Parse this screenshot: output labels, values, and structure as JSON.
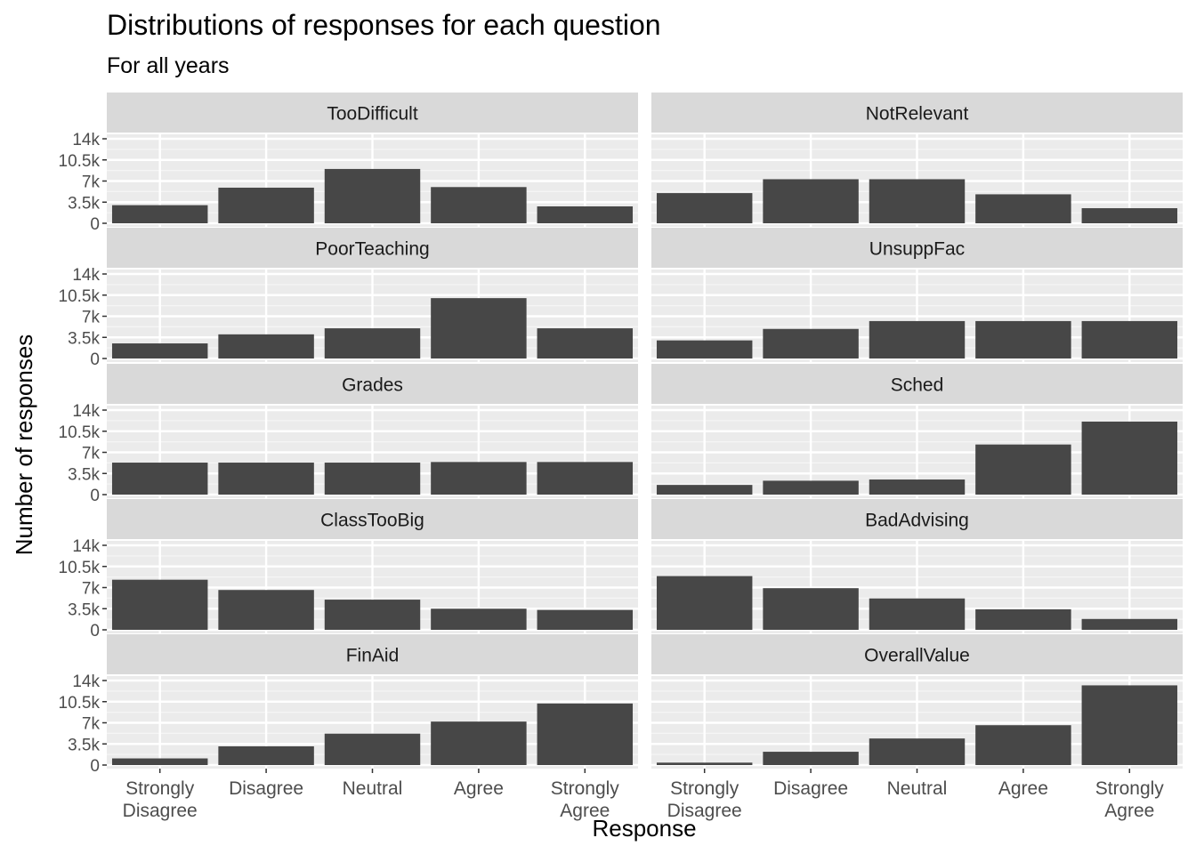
{
  "chart_data": {
    "type": "bar",
    "title": "Distributions of responses for each question",
    "subtitle": "For all years",
    "xlabel": "Response",
    "ylabel": "Number of responses",
    "categories": [
      "Strongly Disagree",
      "Disagree",
      "Neutral",
      "Agree",
      "Strongly Agree"
    ],
    "category_lines": [
      [
        "Strongly",
        "Disagree"
      ],
      [
        "Disagree"
      ],
      [
        "Neutral"
      ],
      [
        "Agree"
      ],
      [
        "Strongly",
        "Agree"
      ]
    ],
    "ylim": [
      0,
      14000
    ],
    "yticks": [
      0,
      3500,
      7000,
      10500,
      14000
    ],
    "ytick_labels": [
      "0",
      "3.5k",
      "7k",
      "10.5k",
      "14k"
    ],
    "grid": true,
    "legend": "none",
    "panels": [
      {
        "name": "TooDifficult",
        "values": [
          3000,
          5900,
          9000,
          6000,
          2800
        ]
      },
      {
        "name": "NotRelevant",
        "values": [
          5000,
          7300,
          7300,
          4800,
          2500
        ]
      },
      {
        "name": "PoorTeaching",
        "values": [
          2500,
          4000,
          5000,
          10000,
          5000
        ]
      },
      {
        "name": "UnsuppFac",
        "values": [
          3000,
          4900,
          6200,
          6200,
          6200
        ]
      },
      {
        "name": "Grades",
        "values": [
          5300,
          5300,
          5300,
          5400,
          5400
        ]
      },
      {
        "name": "Sched",
        "values": [
          1600,
          2300,
          2500,
          8300,
          12100
        ]
      },
      {
        "name": "ClassTooBig",
        "values": [
          8300,
          6600,
          5000,
          3500,
          3300
        ]
      },
      {
        "name": "BadAdvising",
        "values": [
          8900,
          6900,
          5200,
          3400,
          1800
        ]
      },
      {
        "name": "FinAid",
        "values": [
          1100,
          3100,
          5200,
          7200,
          10200
        ]
      },
      {
        "name": "OverallValue",
        "values": [
          400,
          2200,
          4400,
          6600,
          13200
        ]
      }
    ]
  }
}
